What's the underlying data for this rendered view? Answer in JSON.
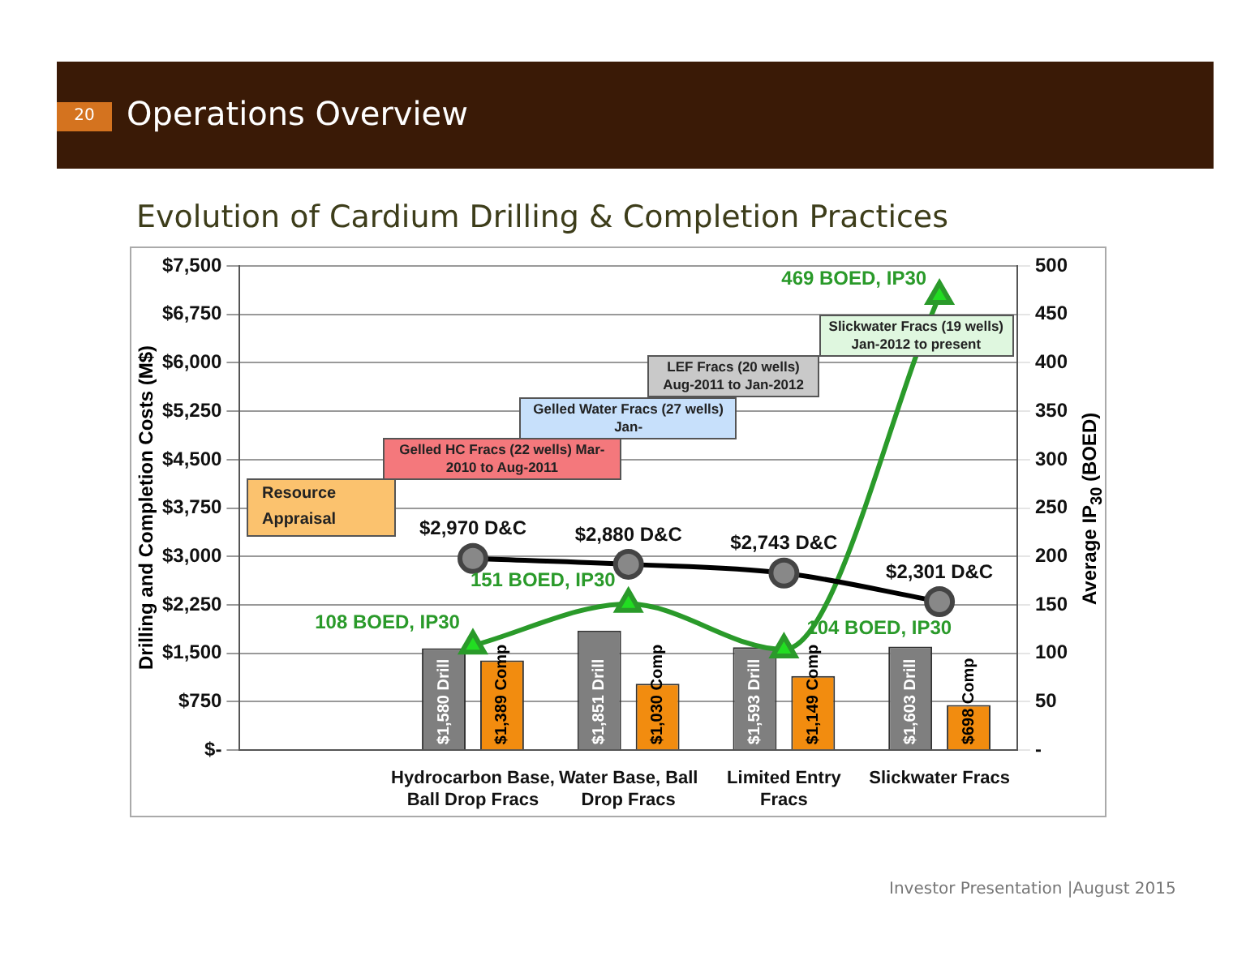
{
  "chart_data": {
    "type": "bar",
    "title": "Operations Overview",
    "subtitle": "Evolution of Cardium Drilling & Completion Practices",
    "ylabel": "Drilling and Completion Costs (M$)",
    "y2label": "Average IP$_{30}$ (BOED)",
    "categories": [
      null,
      "Hydrocarbon Base, Ball Drop Fracs",
      "Water Base, Ball Drop Fracs",
      "Limited Entry Fracs",
      "Slickwater Fracs"
    ],
    "series": [
      {
        "color": "#7f7f7f",
        "values": [
          null,
          1580,
          1851,
          1593,
          1603
        ],
        "value_labels": [
          null,
          "$1,580 Drill",
          "$1,851 Drill",
          "$1,593 Drill",
          "$1,603 Drill"
        ]
      },
      {
        "color": "#f28c0f",
        "values": [
          null,
          1389,
          1030,
          1149,
          698
        ],
        "value_labels": [
          null,
          "$1,389 Comp",
          "$1,030 Comp",
          "$1,149 Comp",
          "$698 Comp"
        ]
      },
      {
        "type": "line",
        "color": "#000000",
        "marker": "circle",
        "values": [
          null,
          2970,
          2880,
          2743,
          2301
        ],
        "value_labels": [
          null,
          "$2,970 D&C",
          "$2,880 D&C",
          "$2,743 D&C",
          "$2,301 D&C"
        ]
      },
      {
        "type": "line",
        "color": "#2a9a2a",
        "marker": "triangle",
        "axis": "y2",
        "values": [
          null,
          108,
          151,
          104,
          469
        ],
        "value_labels": [
          null,
          "108 BOED, IP30",
          "151 BOED, IP30",
          "104 BOED, IP30",
          "469 BOED, IP30"
        ]
      }
    ],
    "ylim": [
      0,
      7500
    ],
    "yticks": [
      {
        "value": 0,
        "label": "$-"
      },
      {
        "value": 750,
        "label": "$750"
      },
      {
        "value": 1500,
        "label": "$1,500"
      },
      {
        "value": 2250,
        "label": "$2,250"
      },
      {
        "value": 3000,
        "label": "$3,000"
      },
      {
        "value": 3750,
        "label": "$3,750"
      },
      {
        "value": 4500,
        "label": "$4,500"
      },
      {
        "value": 5250,
        "label": "$5,250"
      },
      {
        "value": 6000,
        "label": "$6,000"
      },
      {
        "value": 6750,
        "label": "$6,750"
      },
      {
        "value": 7500,
        "label": "$7,500"
      }
    ],
    "y2lim": [
      0,
      500
    ],
    "y2ticks": [
      {
        "value": 0,
        "label": "-"
      },
      50,
      100,
      150,
      200,
      250,
      300,
      350,
      400,
      450,
      500
    ],
    "grid": "y",
    "legend": false,
    "annotations": [
      "Resource Appraisal",
      "Gelled HC Fracs (22 wells) Mar-2010 to Aug-2011",
      "Gelled Water Fracs (27 wells) Jan-",
      "LEF Fracs (20 wells) Aug-2011 to Jan-2012",
      "Slickwater Fracs (19 wells) Jan-2012 to present",
      "20",
      "Investor Presentation  |August 2015"
    ]
  }
}
